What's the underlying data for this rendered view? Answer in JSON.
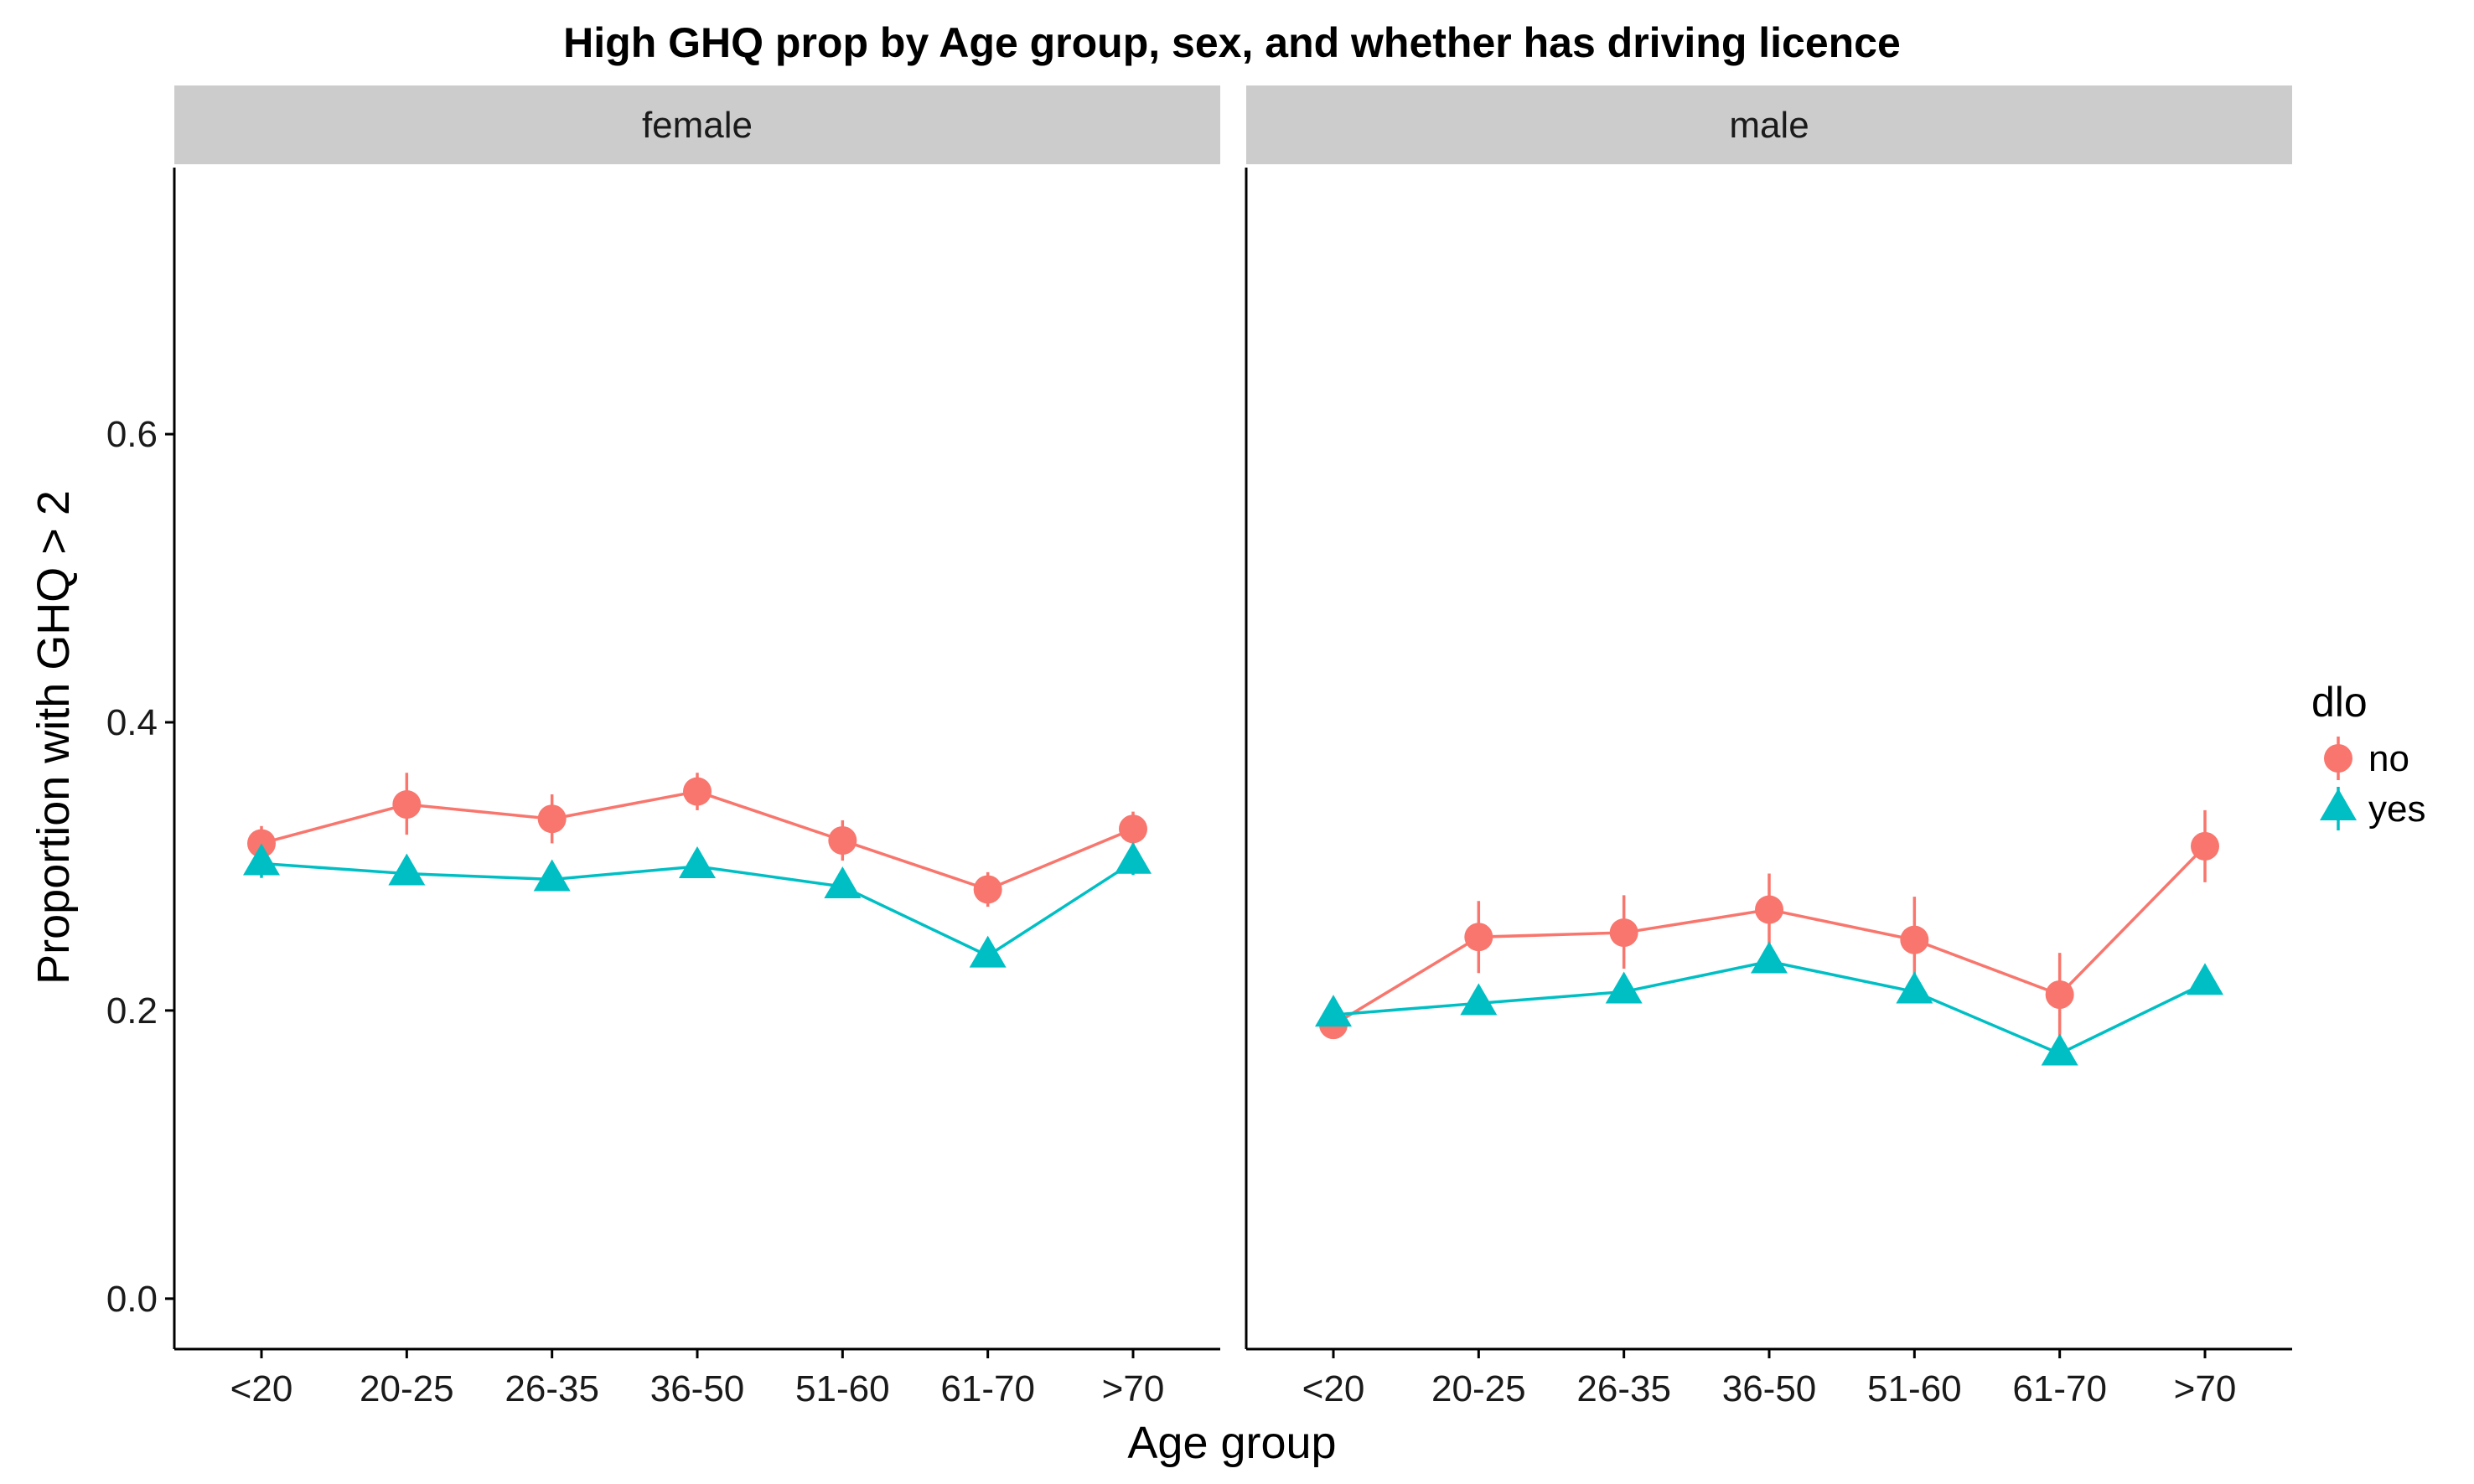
{
  "chart_data": {
    "type": "line",
    "title": "High GHQ prop by Age group, sex, and whether has driving licence",
    "xlabel": "Age group",
    "ylabel": "Proportion with GHQ > 2",
    "categories": [
      "<20",
      "20-25",
      "26-35",
      "36-50",
      "51-60",
      "61-70",
      ">70"
    ],
    "y_ticks": [
      "0.0",
      "0.2",
      "0.4",
      "0.6"
    ],
    "ylim": [
      -0.035,
      0.785
    ],
    "legend": {
      "title": "dlo",
      "position": "right",
      "entries": [
        {
          "label": "no",
          "color": "#F8766D",
          "shape": "circle"
        },
        {
          "label": "yes",
          "color": "#00BFC4",
          "shape": "triangle"
        }
      ]
    },
    "grid": false,
    "panels": [
      {
        "strip": "female",
        "series": [
          {
            "name": "no",
            "color": "#F8766D",
            "shape": "circle",
            "values": [
              0.316,
              0.343,
              0.333,
              0.352,
              0.318,
              0.284,
              0.326
            ],
            "err_low": [
              0.304,
              0.322,
              0.316,
              0.339,
              0.304,
              0.272,
              0.315
            ],
            "err_high": [
              0.328,
              0.365,
              0.35,
              0.365,
              0.332,
              0.296,
              0.338
            ]
          },
          {
            "name": "yes",
            "color": "#00BFC4",
            "shape": "triangle",
            "values": [
              0.302,
              0.295,
              0.291,
              0.3,
              0.286,
              0.238,
              0.303
            ],
            "err_low": [
              0.292,
              0.288,
              0.285,
              0.295,
              0.279,
              0.232,
              0.294
            ],
            "err_high": [
              0.311,
              0.302,
              0.297,
              0.305,
              0.293,
              0.244,
              0.312
            ]
          }
        ]
      },
      {
        "strip": "male",
        "series": [
          {
            "name": "no",
            "color": "#F8766D",
            "shape": "circle",
            "values": [
              0.19,
              0.251,
              0.254,
              0.27,
              0.249,
              0.211,
              0.314
            ],
            "err_low": [
              0.181,
              0.226,
              0.229,
              0.245,
              0.22,
              0.182,
              0.289
            ],
            "err_high": [
              0.199,
              0.276,
              0.28,
              0.295,
              0.279,
              0.24,
              0.339
            ]
          },
          {
            "name": "yes",
            "color": "#00BFC4",
            "shape": "triangle",
            "values": [
              0.197,
              0.205,
              0.213,
              0.234,
              0.213,
              0.17,
              0.219
            ],
            "err_low": [
              0.19,
              0.199,
              0.208,
              0.229,
              0.206,
              0.163,
              0.211
            ],
            "err_high": [
              0.204,
              0.211,
              0.218,
              0.239,
              0.22,
              0.177,
              0.227
            ]
          }
        ]
      }
    ]
  }
}
